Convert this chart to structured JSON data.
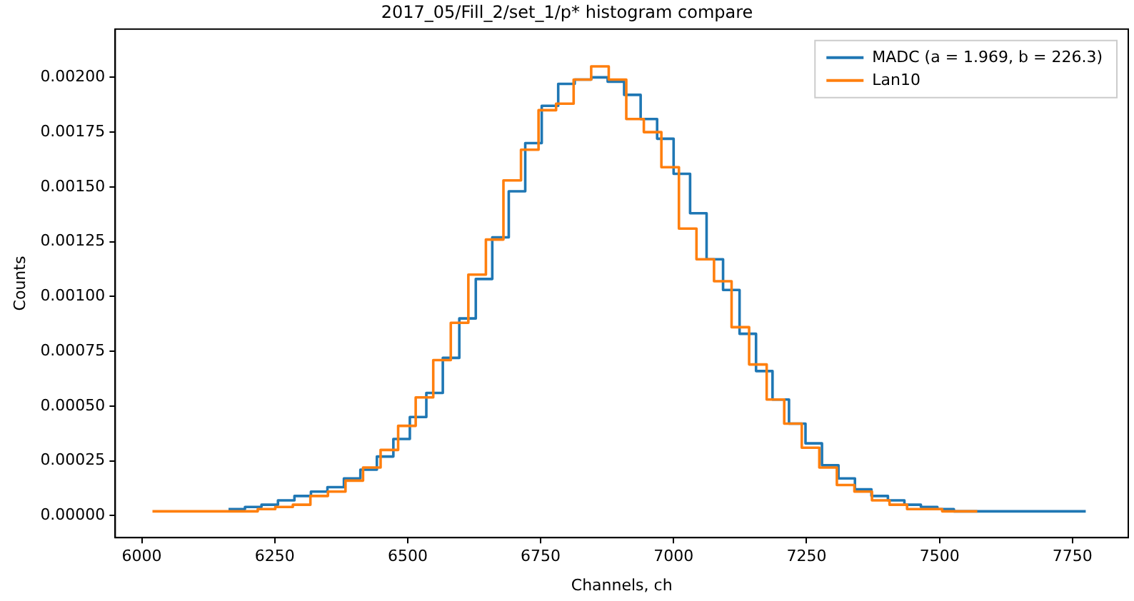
{
  "chart_data": {
    "type": "step",
    "title": "2017_05/Fill_2/set_1/p* histogram compare",
    "xlabel": "Channels, ch",
    "ylabel": "Counts",
    "xlim": [
      5950,
      7855
    ],
    "xticks": [
      6000,
      6250,
      6500,
      6750,
      7000,
      7250,
      7500,
      7750
    ],
    "ylim": [
      -0.0001,
      0.00222
    ],
    "yticks": [
      {
        "value": 0,
        "label": "0.00000"
      },
      {
        "value": 0.00025,
        "label": "0.00025"
      },
      {
        "value": 0.0005,
        "label": "0.00050"
      },
      {
        "value": 0.00075,
        "label": "0.00075"
      },
      {
        "value": 0.001,
        "label": "0.00100"
      },
      {
        "value": 0.00125,
        "label": "0.00125"
      },
      {
        "value": 0.0015,
        "label": "0.00150"
      },
      {
        "value": 0.00175,
        "label": "0.00175"
      },
      {
        "value": 0.002,
        "label": "0.00200"
      }
    ],
    "grid": false,
    "legend": "top right",
    "series": [
      {
        "name": "MADC (a = 1.969, b = 226.3)",
        "color": "#1f77b4",
        "x": [
          6163,
          6194,
          6225,
          6256,
          6287,
          6318,
          6349,
          6380,
          6411,
          6442,
          6473,
          6504,
          6535,
          6566,
          6597,
          6628,
          6659,
          6690,
          6721,
          6752,
          6783,
          6814,
          6845,
          6876,
          6907,
          6938,
          6969,
          7000,
          7031,
          7062,
          7093,
          7124,
          7155,
          7186,
          7217,
          7248,
          7279,
          7310,
          7341,
          7372,
          7403,
          7434,
          7465,
          7496,
          7527,
          7558,
          7589,
          7620,
          7651,
          7682,
          7713,
          7744,
          7775
        ],
        "values": [
          3e-05,
          3e-05,
          4e-05,
          5e-05,
          7e-05,
          9e-05,
          0.00011,
          0.00013,
          0.00017,
          0.00021,
          0.00027,
          0.00035,
          0.00045,
          0.00056,
          0.00072,
          0.0009,
          0.00108,
          0.00127,
          0.00148,
          0.0017,
          0.00187,
          0.00197,
          0.00199,
          0.002,
          0.00198,
          0.00192,
          0.00181,
          0.00172,
          0.00156,
          0.00138,
          0.00117,
          0.00103,
          0.00083,
          0.00066,
          0.00053,
          0.00042,
          0.00033,
          0.00023,
          0.00017,
          0.00012,
          9e-05,
          7e-05,
          5e-05,
          4e-05,
          3e-05,
          2e-05,
          2e-05,
          2e-05,
          2e-05,
          2e-05,
          2e-05,
          2e-05,
          2e-05
        ]
      },
      {
        "name": "Lan10",
        "color": "#ff7f0e",
        "x": [
          6020,
          6053,
          6086,
          6119,
          6152,
          6185,
          6218,
          6251,
          6284,
          6317,
          6350,
          6383,
          6416,
          6449,
          6482,
          6515,
          6548,
          6581,
          6614,
          6647,
          6680,
          6713,
          6746,
          6779,
          6812,
          6845,
          6878,
          6911,
          6944,
          6977,
          7010,
          7043,
          7076,
          7109,
          7142,
          7175,
          7208,
          7241,
          7274,
          7307,
          7340,
          7373,
          7406,
          7439,
          7472,
          7505,
          7538,
          7571
        ],
        "values": [
          2e-05,
          2e-05,
          2e-05,
          2e-05,
          2e-05,
          2e-05,
          2e-05,
          3e-05,
          4e-05,
          5e-05,
          9e-05,
          0.00011,
          0.00016,
          0.00022,
          0.0003,
          0.00041,
          0.00054,
          0.00071,
          0.00088,
          0.0011,
          0.00126,
          0.00153,
          0.00167,
          0.00185,
          0.00188,
          0.00199,
          0.00205,
          0.00199,
          0.00181,
          0.00175,
          0.00159,
          0.00131,
          0.00117,
          0.00107,
          0.00086,
          0.00069,
          0.00053,
          0.00042,
          0.00031,
          0.00022,
          0.00014,
          0.00011,
          7e-05,
          5e-05,
          3e-05,
          3e-05,
          2e-05,
          2e-05
        ]
      }
    ]
  }
}
